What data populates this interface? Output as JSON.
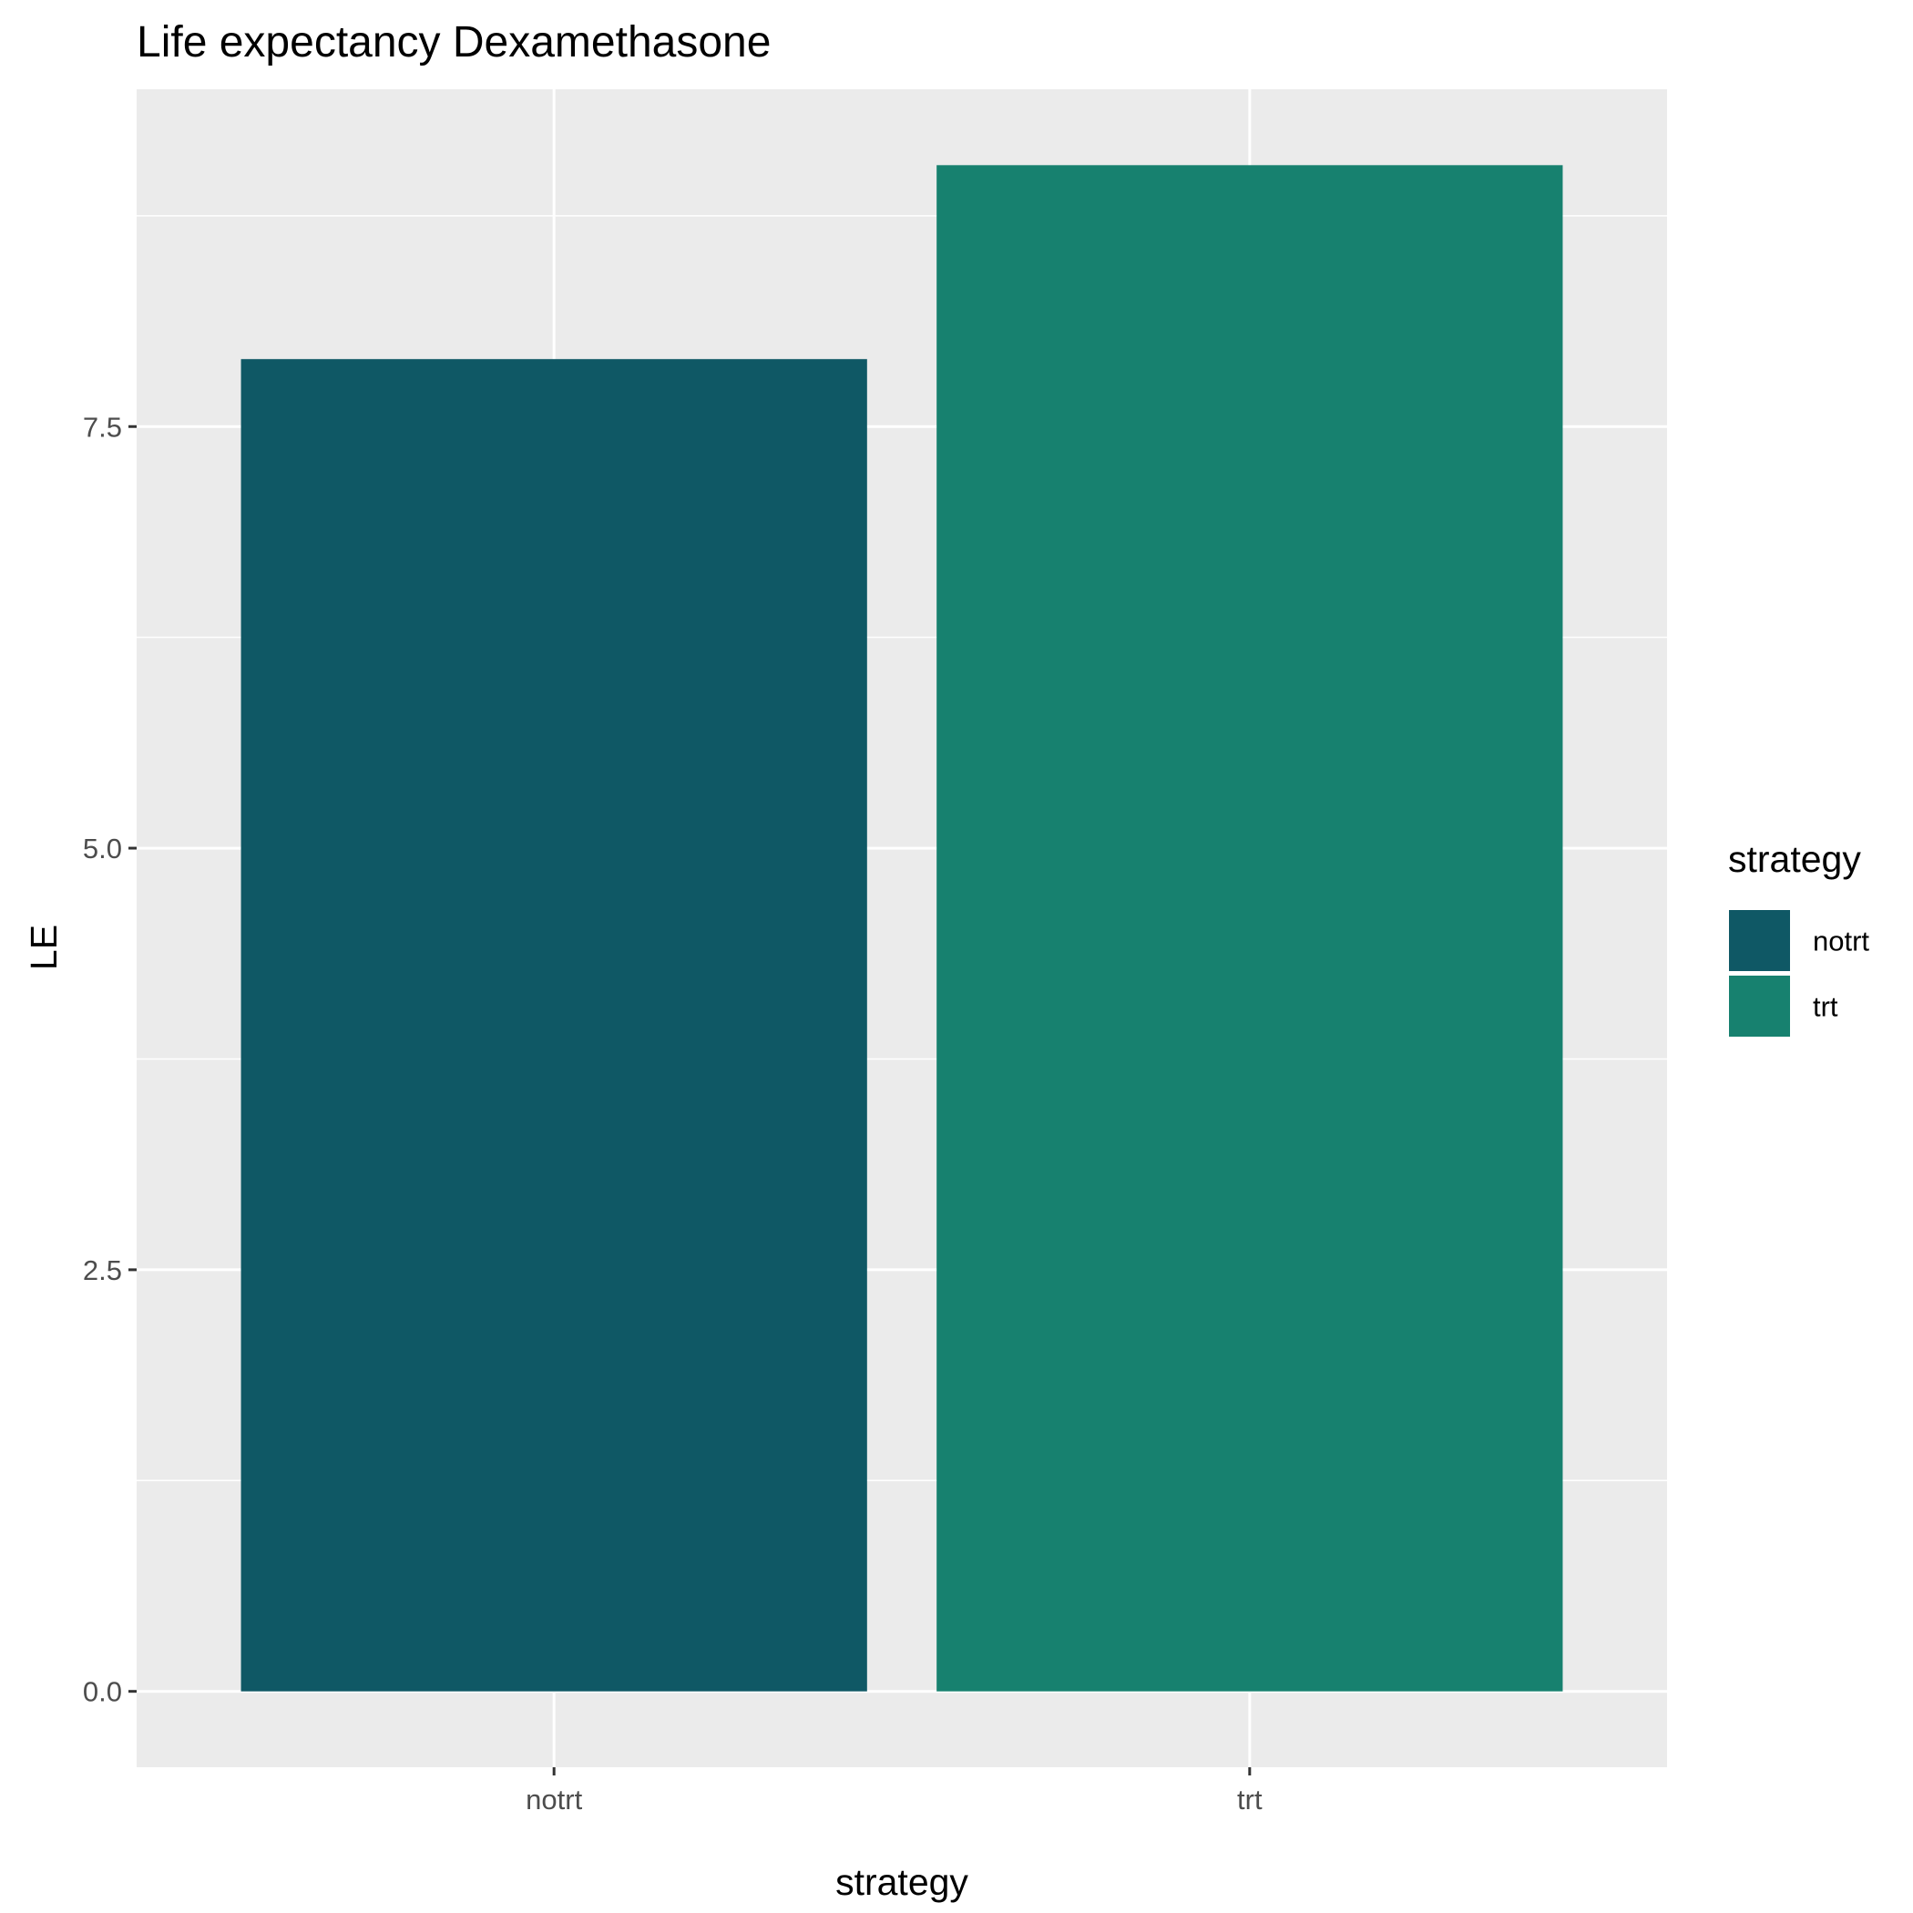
{
  "chart_data": {
    "type": "bar",
    "title": "Life expectancy Dexamethasone",
    "xlabel": "strategy",
    "ylabel": "LE",
    "categories": [
      "notrt",
      "trt"
    ],
    "values": [
      7.9,
      9.05
    ],
    "colors": [
      "#0f5865",
      "#17816f"
    ],
    "ylim": [
      -0.45,
      9.5
    ],
    "yticks": [
      0.0,
      2.5,
      5.0,
      7.5
    ],
    "ytick_labels": [
      "0.0",
      "2.5",
      "5.0",
      "7.5"
    ],
    "grid": true,
    "panel_background": "#ebebeb",
    "legend": {
      "title": "strategy",
      "position": "right",
      "entries": [
        {
          "label": "notrt",
          "color": "#0f5865"
        },
        {
          "label": "trt",
          "color": "#17816f"
        }
      ]
    }
  }
}
